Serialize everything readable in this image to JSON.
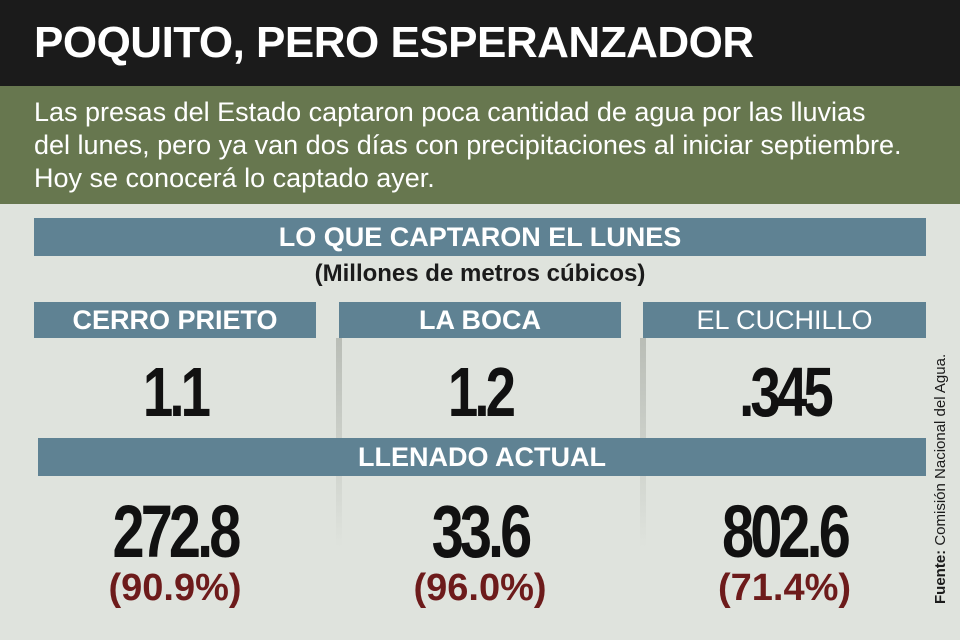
{
  "header": {
    "title": "POQUITO, PERO ESPERANZADOR",
    "subtitle": "Las presas del Estado captaron poca cantidad de agua por las lluvias del lunes, pero ya van dos días con precipitaciones al iniciar septiembre. Hoy se conocerá lo captado ayer."
  },
  "captured_section": {
    "title": "LO QUE CAPTARON EL LUNES",
    "units": "(Millones de metros cúbicos)"
  },
  "level_section": {
    "title": "LLENADO ACTUAL"
  },
  "dams": [
    {
      "name": "CERRO PRIETO",
      "captured": "1.1",
      "level": "272.8",
      "percent": "(90.9%)"
    },
    {
      "name": "LA BOCA",
      "captured": "1.2",
      "level": "33.6",
      "percent": "(96.0%)"
    },
    {
      "name": "EL CUCHILLO",
      "captured": ".345",
      "level": "802.6",
      "percent": "(71.4%)"
    }
  ],
  "source": {
    "label": "Fuente:",
    "text": " Comisión Nacional del Agua."
  },
  "colors": {
    "title_bg": "#1b1b1b",
    "subtitle_bg": "#67774f",
    "band_bg": "#5f8293",
    "percent_text": "#6d1b1b",
    "page_bg": "#dfe3dd"
  }
}
